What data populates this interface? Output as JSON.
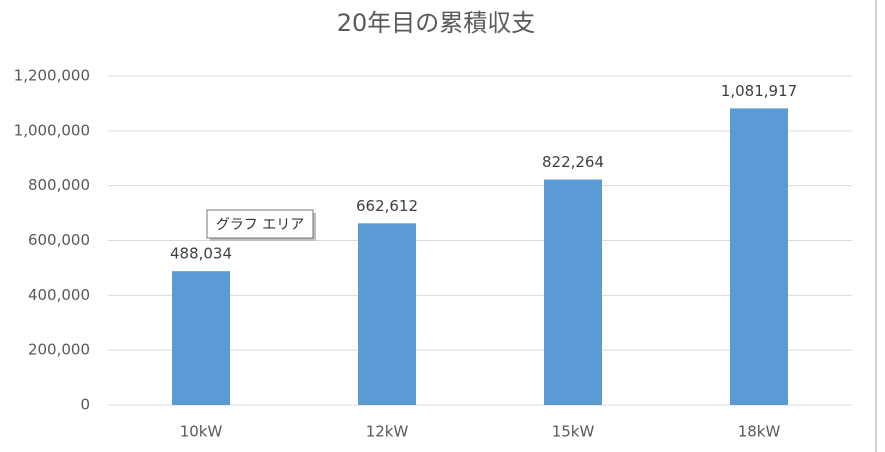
{
  "chart_data": {
    "type": "bar",
    "title": "20年目の累積収支",
    "categories": [
      "10kW",
      "12kW",
      "15kW",
      "18kW"
    ],
    "values": [
      488034,
      662612,
      822264,
      1081917
    ],
    "value_labels": [
      "488,034",
      "662,612",
      "822,264",
      "1,081,917"
    ],
    "color": "#5b9bd5",
    "ylim": [
      0,
      1200000
    ],
    "yticks": [
      0,
      {
        "value": 200000,
        "label": "200,000"
      },
      {
        "value": 400000,
        "label": "400,000"
      },
      {
        "value": 600000,
        "label": "600,000"
      },
      {
        "value": 800000,
        "label": "800,000"
      },
      {
        "value": 1000000,
        "label": "1,000,000"
      },
      {
        "value": 1200000,
        "label": "1,200,000"
      }
    ],
    "grid": true,
    "tooltip": "グラフ エリア"
  }
}
